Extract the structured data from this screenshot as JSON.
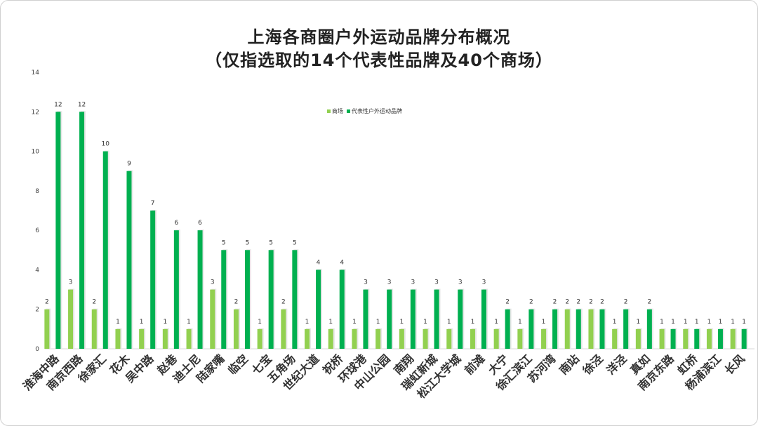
{
  "chart_data": {
    "type": "bar",
    "title": "上海各商圈户外运动品牌分布概况",
    "subtitle": "（仅指选取的14个代表性品牌及40个商场）",
    "categories": [
      "淮海中路",
      "南京西路",
      "徐家汇",
      "花木",
      "吴中路",
      "赵巷",
      "迪士尼",
      "陆家嘴",
      "临空",
      "七宝",
      "五角场",
      "世纪大道",
      "祝桥",
      "环球港",
      "中山公园",
      "南翔",
      "瑞虹新城",
      "松江大学城",
      "前滩",
      "大宁",
      "徐汇滨江",
      "苏河湾",
      "南站",
      "徐泾",
      "洋泾",
      "真如",
      "南京东路",
      "虹桥",
      "杨浦滨江",
      "长风"
    ],
    "series": [
      {
        "name": "商场",
        "color": "#92d050",
        "values": [
          2,
          3,
          2,
          1,
          1,
          1,
          1,
          3,
          2,
          1,
          2,
          1,
          1,
          1,
          1,
          1,
          1,
          1,
          1,
          1,
          1,
          1,
          2,
          2,
          1,
          1,
          1,
          1,
          1,
          1
        ]
      },
      {
        "name": "代表性户外运动品牌",
        "color": "#00b050",
        "values": [
          12,
          12,
          10,
          9,
          7,
          6,
          6,
          5,
          5,
          5,
          5,
          4,
          4,
          3,
          3,
          3,
          3,
          3,
          3,
          2,
          2,
          2,
          2,
          2,
          2,
          2,
          1,
          1,
          1,
          1
        ]
      }
    ],
    "ylim": [
      0,
      14
    ],
    "yticks": [
      0,
      2,
      4,
      6,
      8,
      10,
      12,
      14
    ],
    "xlabel": "",
    "ylabel": "",
    "grid": false,
    "legend_position": "top-center",
    "data_labels": true
  }
}
